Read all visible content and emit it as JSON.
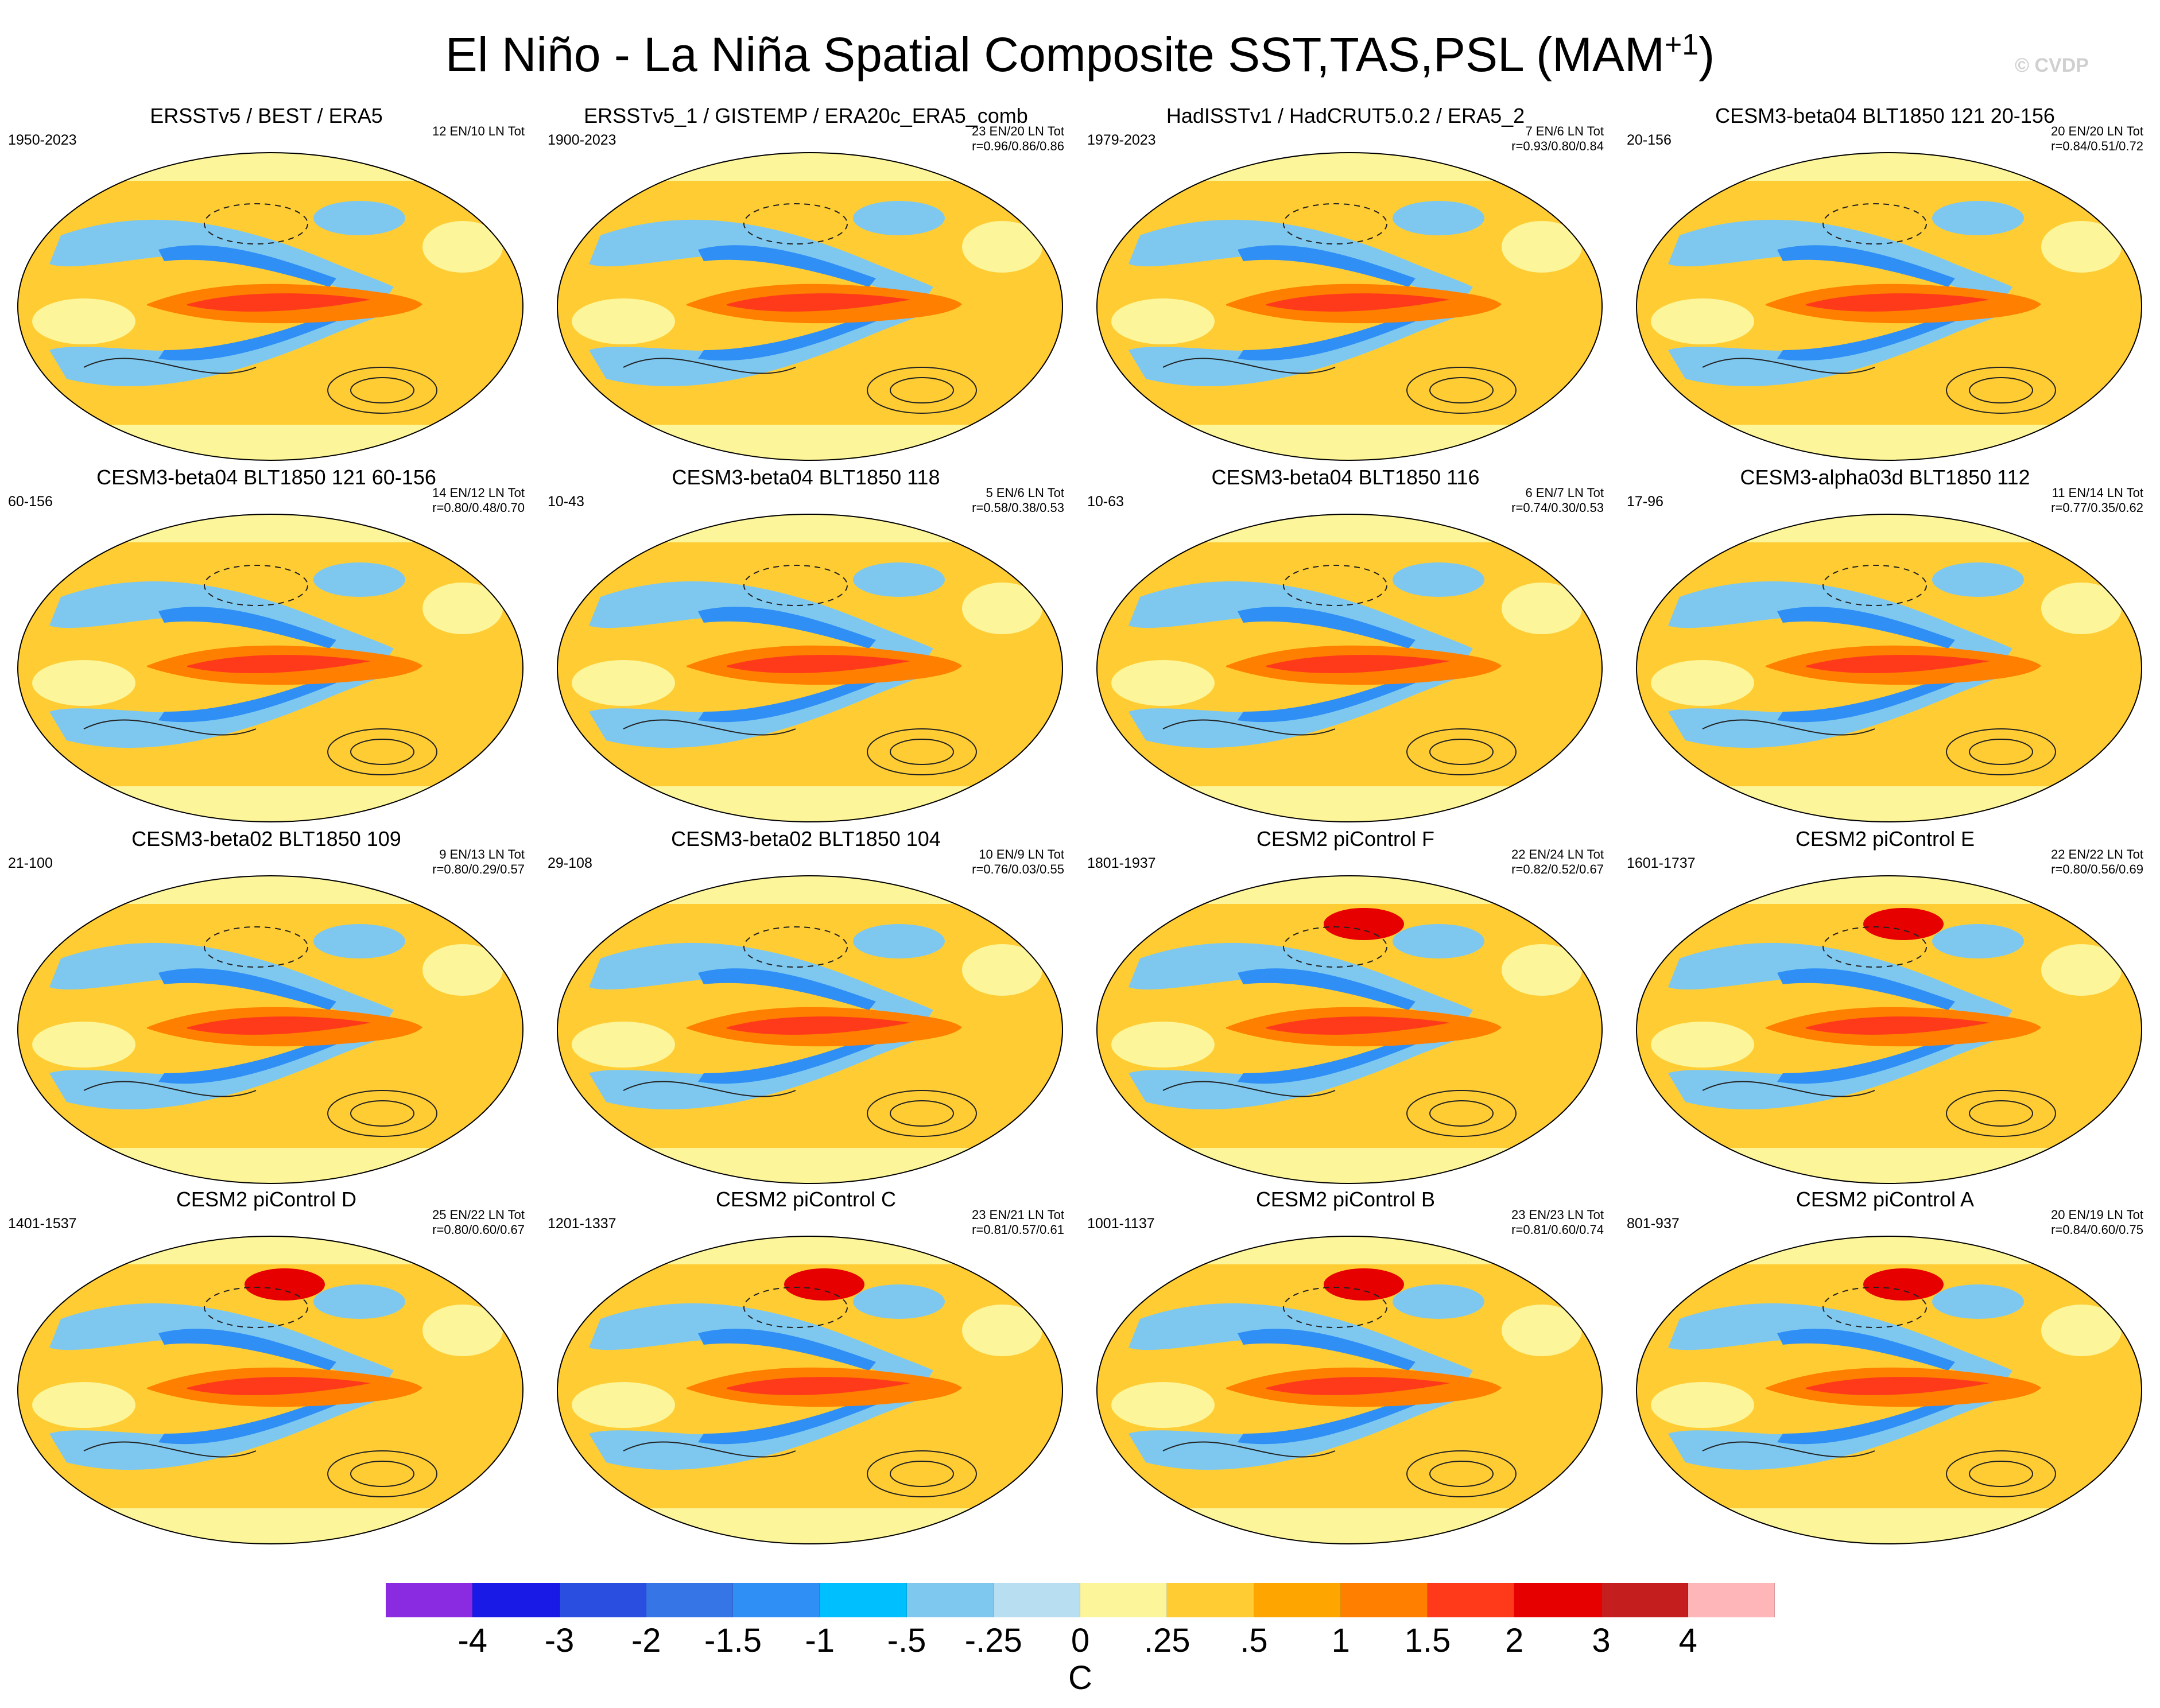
{
  "figure": {
    "title": "El Niño - La Niña Spatial Composite SST,TAS,PSL (MAM",
    "title_sup": "+1",
    "title_end": ")",
    "watermark": "© CVDP"
  },
  "panels": [
    {
      "title": "ERSSTv5 / BEST / ERA5",
      "years": "1950-2023",
      "count": "12 EN/10 LN Tot",
      "corr": ""
    },
    {
      "title": "ERSSTv5_1 / GISTEMP / ERA20c_ERA5_comb",
      "years": "1900-2023",
      "count": "23 EN/20 LN Tot",
      "corr": "r=0.96/0.86/0.86"
    },
    {
      "title": "HadISSTv1 / HadCRUT5.0.2 / ERA5_2",
      "years": "1979-2023",
      "count": "7 EN/6 LN Tot",
      "corr": "r=0.93/0.80/0.84"
    },
    {
      "title": "CESM3-beta04 BLT1850 121 20-156",
      "years": "20-156",
      "count": "20 EN/20 LN Tot",
      "corr": "r=0.84/0.51/0.72"
    },
    {
      "title": "CESM3-beta04 BLT1850 121 60-156",
      "years": "60-156",
      "count": "14 EN/12 LN Tot",
      "corr": "r=0.80/0.48/0.70"
    },
    {
      "title": "CESM3-beta04 BLT1850 118",
      "years": "10-43",
      "count": "5 EN/6 LN Tot",
      "corr": "r=0.58/0.38/0.53"
    },
    {
      "title": "CESM3-beta04 BLT1850 116",
      "years": "10-63",
      "count": "6 EN/7 LN Tot",
      "corr": "r=0.74/0.30/0.53"
    },
    {
      "title": "CESM3-alpha03d BLT1850 112",
      "years": "17-96",
      "count": "11 EN/14 LN Tot",
      "corr": "r=0.77/0.35/0.62"
    },
    {
      "title": "CESM3-beta02 BLT1850 109",
      "years": "21-100",
      "count": "9 EN/13 LN Tot",
      "corr": "r=0.80/0.29/0.57"
    },
    {
      "title": "CESM3-beta02 BLT1850 104",
      "years": "29-108",
      "count": "10 EN/9 LN Tot",
      "corr": "r=0.76/0.03/0.55"
    },
    {
      "title": "CESM2 piControl F",
      "years": "1801-1937",
      "count": "22 EN/24 LN Tot",
      "corr": "r=0.82/0.52/0.67"
    },
    {
      "title": "CESM2 piControl E",
      "years": "1601-1737",
      "count": "22 EN/22 LN Tot",
      "corr": "r=0.80/0.56/0.69"
    },
    {
      "title": "CESM2 piControl D",
      "years": "1401-1537",
      "count": "25 EN/22 LN Tot",
      "corr": "r=0.80/0.60/0.67"
    },
    {
      "title": "CESM2 piControl C",
      "years": "1201-1337",
      "count": "23 EN/21 LN Tot",
      "corr": "r=0.81/0.57/0.61"
    },
    {
      "title": "CESM2 piControl B",
      "years": "1001-1137",
      "count": "23 EN/23 LN Tot",
      "corr": "r=0.81/0.60/0.74"
    },
    {
      "title": "CESM2 piControl A",
      "years": "801-937",
      "count": "20 EN/19 LN Tot",
      "corr": "r=0.84/0.60/0.75"
    }
  ],
  "colorbar": {
    "colors": [
      "#8a2be2",
      "#1a1ae6",
      "#2a4fe0",
      "#3575e6",
      "#2f8ff5",
      "#00bfff",
      "#7ec8f0",
      "#b8def2",
      "#fdf59a",
      "#ffcc33",
      "#ffa500",
      "#ff7f00",
      "#ff3a1a",
      "#e60000",
      "#c41e1e",
      "#ffb6b9"
    ],
    "labels": [
      "-4",
      "-3",
      "-2",
      "-1.5",
      "-1",
      "-.5",
      "-.25",
      "0",
      ".25",
      ".5",
      "1",
      "1.5",
      "2",
      "3",
      "4"
    ],
    "unit": "C"
  }
}
